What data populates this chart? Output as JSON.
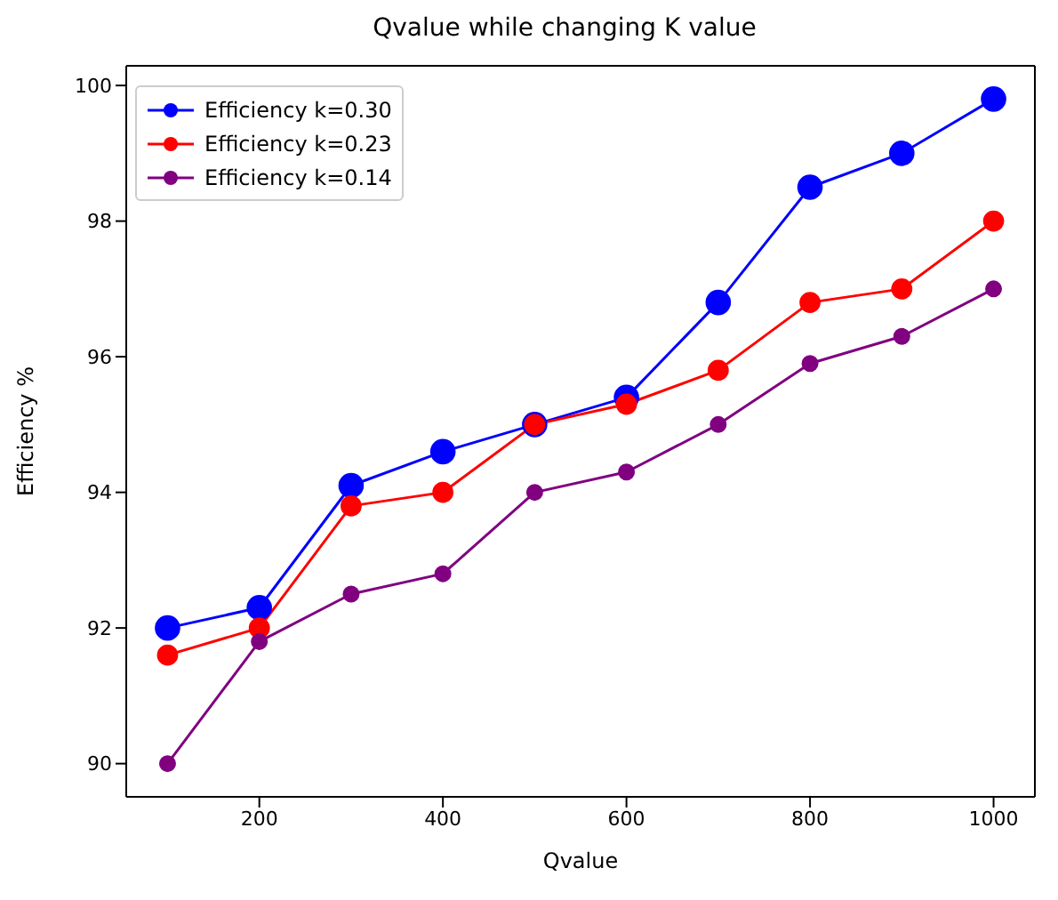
{
  "chart_data": {
    "type": "line",
    "title": "Qvalue while changing K value",
    "xlabel": "Qvalue",
    "ylabel": "Efficiency %",
    "x": [
      100,
      200,
      300,
      400,
      500,
      600,
      700,
      800,
      900,
      1000
    ],
    "series": [
      {
        "name": "Efficiency k=0.30",
        "color": "#0000ff",
        "values": [
          92.0,
          92.3,
          94.1,
          94.6,
          95.0,
          95.4,
          96.8,
          98.5,
          99.0,
          99.8
        ]
      },
      {
        "name": "Efficiency k=0.23",
        "color": "#ff0000",
        "values": [
          91.6,
          92.0,
          93.8,
          94.0,
          95.0,
          95.3,
          95.8,
          96.8,
          97.0,
          98.0
        ]
      },
      {
        "name": "Efficiency k=0.14",
        "color": "#800080",
        "values": [
          90.0,
          91.8,
          92.5,
          92.8,
          94.0,
          94.3,
          95.0,
          95.9,
          96.3,
          97.0
        ]
      }
    ],
    "xlim": [
      55,
      1045
    ],
    "xticks": [
      200,
      400,
      600,
      800,
      1000
    ],
    "ylim": [
      89.51,
      100.29
    ],
    "yticks": [
      90,
      92,
      94,
      96,
      98,
      100
    ],
    "grid": false,
    "legend": "top left",
    "marker": "circle",
    "line_style": "solid"
  }
}
